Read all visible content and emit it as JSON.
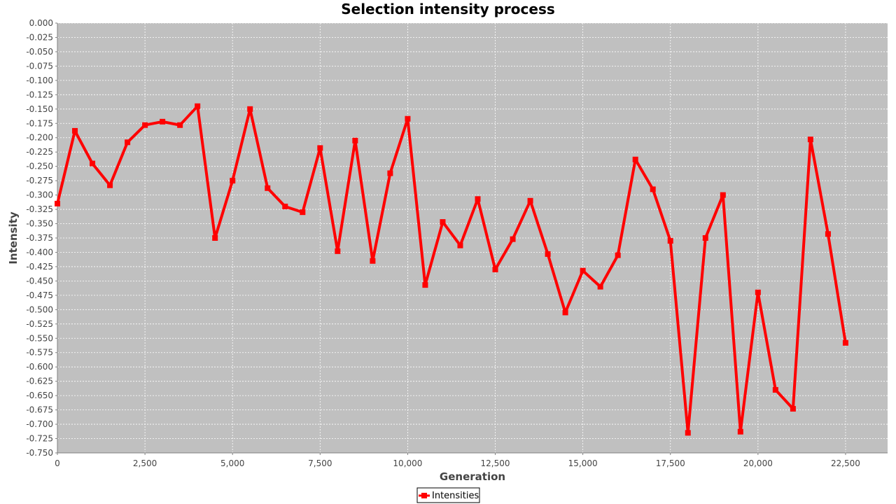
{
  "chart_data": {
    "type": "line",
    "title": "Selection intensity process",
    "xlabel": "Generation",
    "ylabel": "Intensity",
    "xlim": [
      0,
      23700
    ],
    "ylim": [
      -0.75,
      0.0
    ],
    "xticks": [
      0,
      2500,
      5000,
      7500,
      10000,
      12500,
      15000,
      17500,
      20000,
      22500
    ],
    "xtick_labels": [
      "0",
      "2,500",
      "5,000",
      "7,500",
      "10,000",
      "12,500",
      "15,000",
      "17,500",
      "20,000",
      "22,500"
    ],
    "yticks": [
      0.0,
      -0.025,
      -0.05,
      -0.075,
      -0.1,
      -0.125,
      -0.15,
      -0.175,
      -0.2,
      -0.225,
      -0.25,
      -0.275,
      -0.3,
      -0.325,
      -0.35,
      -0.375,
      -0.4,
      -0.425,
      -0.45,
      -0.475,
      -0.5,
      -0.525,
      -0.55,
      -0.575,
      -0.6,
      -0.625,
      -0.65,
      -0.675,
      -0.7,
      -0.725,
      -0.75
    ],
    "ytick_labels": [
      "0.000",
      "-0.025",
      "-0.050",
      "-0.075",
      "-0.100",
      "-0.125",
      "-0.150",
      "-0.175",
      "-0.200",
      "-0.225",
      "-0.250",
      "-0.275",
      "-0.300",
      "-0.325",
      "-0.350",
      "-0.375",
      "-0.400",
      "-0.425",
      "-0.450",
      "-0.475",
      "-0.500",
      "-0.525",
      "-0.550",
      "-0.575",
      "-0.600",
      "-0.625",
      "-0.650",
      "-0.675",
      "-0.700",
      "-0.725",
      "-0.750"
    ],
    "grid": true,
    "legend_position": "bottom-center",
    "plot_background": "#c0c0c0",
    "series": [
      {
        "name": "Intensities",
        "color": "#ff0000",
        "marker": "square",
        "x": [
          0,
          500,
          1000,
          1500,
          2000,
          2500,
          3000,
          3500,
          4000,
          4500,
          5000,
          5500,
          6000,
          6500,
          7000,
          7500,
          8000,
          8500,
          9000,
          9500,
          10000,
          10500,
          11000,
          11500,
          12000,
          12500,
          13000,
          13500,
          14000,
          14500,
          15000,
          15500,
          16000,
          16500,
          17000,
          17500,
          18000,
          18500,
          19000,
          19500,
          20000,
          20500,
          21000,
          21500,
          22000,
          22500
        ],
        "y": [
          -0.315,
          -0.188,
          -0.245,
          -0.283,
          -0.208,
          -0.178,
          -0.172,
          -0.178,
          -0.145,
          -0.375,
          -0.275,
          -0.15,
          -0.288,
          -0.32,
          -0.33,
          -0.218,
          -0.398,
          -0.205,
          -0.415,
          -0.262,
          -0.167,
          -0.457,
          -0.347,
          -0.388,
          -0.307,
          -0.43,
          -0.377,
          -0.31,
          -0.403,
          -0.505,
          -0.432,
          -0.46,
          -0.405,
          -0.238,
          -0.29,
          -0.38,
          -0.715,
          -0.375,
          -0.3,
          -0.713,
          -0.47,
          -0.64,
          -0.673,
          -0.203,
          -0.368,
          -0.558
        ]
      }
    ]
  }
}
